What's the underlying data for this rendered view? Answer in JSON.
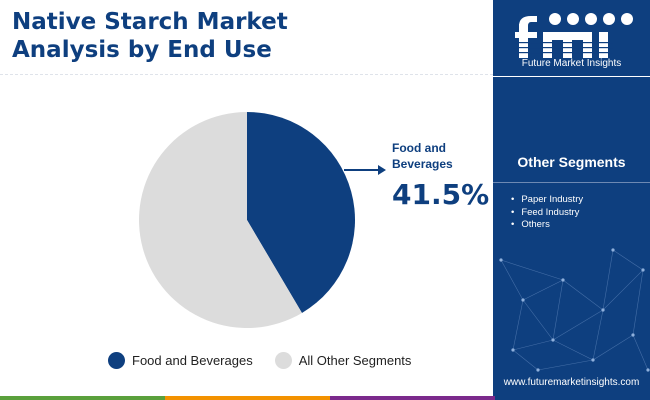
{
  "title": {
    "line1": "Native Starch Market",
    "line2": "Analysis by End Use"
  },
  "chart_data": {
    "type": "pie",
    "title": "Native Starch Market Analysis by End Use",
    "categories": [
      "Food and Beverages",
      "All Other Segments"
    ],
    "values": [
      41.5,
      58.5
    ],
    "unit": "%",
    "colors": [
      "#0e3f7f",
      "#dcdcdc"
    ],
    "legend_position": "bottom",
    "callout": {
      "label": "Food and Beverages",
      "value_text": "41.5%"
    }
  },
  "legend": {
    "items": [
      {
        "label": "Food and Beverages",
        "color": "#0e3f7f"
      },
      {
        "label": "All Other Segments",
        "color": "#dcdcdc"
      }
    ]
  },
  "sidebar": {
    "logo_text": "fmi",
    "logo_subtitle": "Future Market Insights",
    "segments_title": "Other Segments",
    "segments": [
      "Paper Industry",
      "Feed Industry",
      "Others"
    ],
    "website": "www.futuremarketinsights.com"
  },
  "colors": {
    "brand_navy": "#0e3f7f",
    "bottom_bar": [
      "#5aa03c",
      "#f39200",
      "#7b2a8c",
      "#0e3f7f"
    ]
  }
}
